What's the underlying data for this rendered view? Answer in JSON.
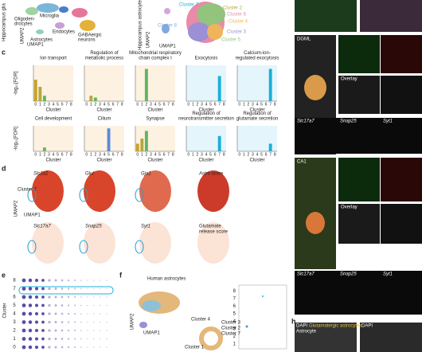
{
  "cluster_colors": [
    "#c9a227",
    "#b5a640",
    "#5cb85c",
    "#e8a0b4",
    "#9c6ade",
    "#5b8bd6",
    "#7fbfbf",
    "#1ab0d8",
    "#a0c4e0"
  ],
  "chart_data": [
    {
      "type": "bar",
      "title": [
        "Ion transport"
      ],
      "ylabel": "-log₁₀[FDR]",
      "xlabel": "Cluster",
      "categories": [
        "0",
        "1",
        "2",
        "3",
        "4",
        "5",
        "6",
        "7",
        "8"
      ],
      "values": [
        6,
        4,
        1.5,
        0,
        0,
        0,
        0,
        0,
        0
      ],
      "ylim": [
        0,
        10
      ],
      "background": "#fdf1e2"
    },
    {
      "type": "bar",
      "title": [
        "Regulation of",
        "metabolic process"
      ],
      "xlabel": "Cluster",
      "categories": [
        "0",
        "1",
        "2",
        "3",
        "4",
        "5",
        "6",
        "7",
        "8"
      ],
      "values": [
        0,
        1.5,
        1,
        0,
        0,
        0,
        0,
        0,
        0
      ],
      "ylim": [
        0,
        10
      ],
      "background": "#fdf1e2"
    },
    {
      "type": "bar",
      "title": [
        "Mitochondrial respiratory",
        "chain complex I"
      ],
      "xlabel": "Cluster",
      "categories": [
        "0",
        "1",
        "2",
        "3",
        "4",
        "5",
        "6",
        "7",
        "8"
      ],
      "values": [
        0,
        0,
        9,
        0,
        0,
        0,
        0,
        0,
        0
      ],
      "ylim": [
        0,
        10
      ],
      "background": "#fdf1e2"
    },
    {
      "type": "bar",
      "title": [
        "Exocytosis"
      ],
      "xlabel": "Cluster",
      "categories": [
        "0",
        "1",
        "2",
        "3",
        "4",
        "5",
        "6",
        "7",
        "8"
      ],
      "values": [
        0,
        0,
        0,
        0,
        0,
        0,
        0,
        7,
        0
      ],
      "ylim": [
        0,
        10
      ],
      "background": "#e4f5fb"
    },
    {
      "type": "bar",
      "title": [
        "Calcium-ion-",
        "regulated exocytosis"
      ],
      "xlabel": "Cluster",
      "categories": [
        "0",
        "1",
        "2",
        "3",
        "4",
        "5",
        "6",
        "7",
        "8"
      ],
      "values": [
        0,
        0,
        0,
        0,
        0,
        0,
        0,
        9,
        0
      ],
      "ylim": [
        0,
        10
      ],
      "background": "#e4f5fb"
    },
    {
      "type": "bar",
      "title": [
        "Cell development"
      ],
      "ylabel": "-log₁₀[FDR]",
      "xlabel": "Cluster",
      "categories": [
        "0",
        "1",
        "2",
        "3",
        "4",
        "5",
        "6",
        "7",
        "8"
      ],
      "values": [
        0,
        0,
        1.5,
        0,
        0,
        0,
        0,
        0,
        0
      ],
      "ylim": [
        0,
        10
      ],
      "background": "#fdf1e2"
    },
    {
      "type": "bar",
      "title": [
        "Cilium"
      ],
      "xlabel": "Cluster",
      "categories": [
        "0",
        "1",
        "2",
        "3",
        "4",
        "5",
        "6",
        "7",
        "8"
      ],
      "values": [
        0,
        0,
        0,
        0,
        0,
        9,
        0,
        0,
        0
      ],
      "ylim": [
        0,
        10
      ],
      "background": "#fdf1e2"
    },
    {
      "type": "bar",
      "title": [
        "Synapse"
      ],
      "xlabel": "Cluster",
      "categories": [
        "0",
        "1",
        "2",
        "3",
        "4",
        "5",
        "6",
        "7",
        "8"
      ],
      "values": [
        3,
        5,
        8,
        0,
        0,
        0,
        0,
        0,
        0
      ],
      "ylim": [
        0,
        10
      ],
      "background": "#fdf1e2"
    },
    {
      "type": "bar",
      "title": [
        "Regulation of",
        "neurotransmitter secretion"
      ],
      "xlabel": "Cluster",
      "categories": [
        "0",
        "1",
        "2",
        "3",
        "4",
        "5",
        "6",
        "7",
        "8"
      ],
      "values": [
        0,
        0,
        0,
        0,
        0,
        0,
        0,
        6,
        0
      ],
      "ylim": [
        0,
        10
      ],
      "background": "#e4f5fb"
    },
    {
      "type": "bar",
      "title": [
        "Regulation of",
        "glutamate secretion"
      ],
      "xlabel": "Cluster",
      "categories": [
        "0",
        "1",
        "2",
        "3",
        "4",
        "5",
        "6",
        "7",
        "8"
      ],
      "values": [
        0,
        0,
        0,
        0,
        0,
        0,
        0,
        3,
        0
      ],
      "ylim": [
        0,
        10
      ],
      "background": "#e4f5fb"
    }
  ],
  "figure": {
    "a": {
      "side": "Hippocampus glia",
      "microglia": "Microglia",
      "oligo": [
        "Oligoden-",
        "drocytes"
      ],
      "endo": "Endocytes",
      "astro": "Astrocytes",
      "gaba": [
        "GABAergic",
        "neurons"
      ],
      "umap2": "UMAP2",
      "umap1": "UMAP1"
    },
    "b": {
      "side": "Hippocampus astrocytes",
      "clusters": [
        "Cluster 7",
        "Cluster 2",
        "Cluster 6",
        "Cluster 4",
        "Cluster 8",
        "Cluster 3",
        "Cluster 5"
      ],
      "umap2": "UMAP2",
      "umap1": "UMAP1"
    },
    "letters": [
      "c",
      "d",
      "e",
      "f",
      "h"
    ],
    "d": {
      "row1": [
        "Slc1a2",
        "Glul",
        "Gja1",
        "Astro score"
      ],
      "cluster": "Cluster 7",
      "umap2": "UMAP2",
      "umap1": "UMAP1",
      "row2": [
        "Slc17a7",
        "Snap25",
        "Syt1"
      ],
      "score": [
        "Glutamate",
        "release score"
      ]
    },
    "e": {
      "ylabel": "Cluster",
      "ticks": [
        "0",
        "1",
        "2",
        "3",
        "4",
        "5",
        "6",
        "7",
        "8"
      ]
    },
    "f": {
      "title": "Human astrocytes",
      "umap2": "UMAP2",
      "umap1": "UMAP1",
      "clusters": [
        "Cluster 4",
        "Cluster 3",
        "Cluster 2",
        "Cluster 7",
        "Cluster 1"
      ],
      "ticks": [
        "1",
        "2",
        "3",
        "4",
        "5",
        "6",
        "7",
        "8"
      ]
    },
    "g": {
      "dgml": "DGML",
      "ca1": "CA1",
      "overlay": "Overlay",
      "genes": [
        "Slc17a7",
        "Snap25",
        "Syt1"
      ]
    },
    "h": {
      "dapi": "DAPI",
      "label1": "Glutamatergic astrocytes",
      "label2": "Astrocyte"
    }
  }
}
